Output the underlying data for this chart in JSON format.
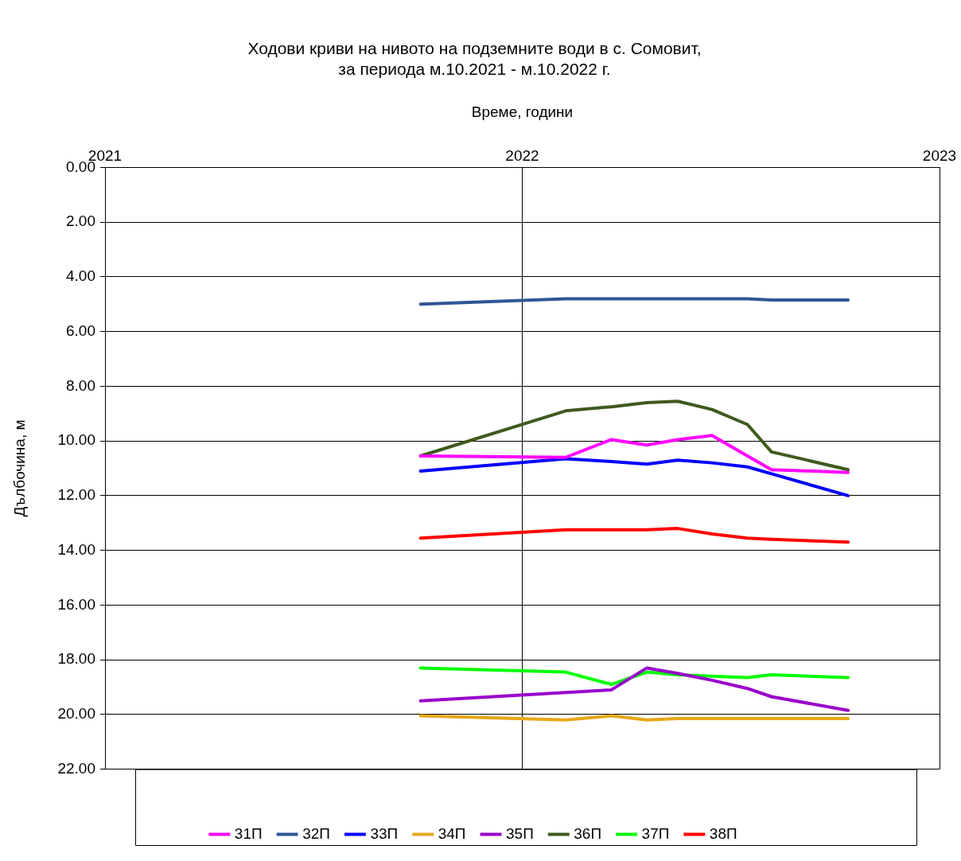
{
  "chart_data": {
    "type": "line",
    "title": "Ходови криви на нивото на подземните води в с. Сомовит,\nза периода м.10.2021 - м.10.2022 г.",
    "xlabel": "Време, години",
    "ylabel": "Дълбочина, м",
    "x": [
      "2021-10-04",
      "2022-02-08",
      "2022-03-20",
      "2022-04-20",
      "2022-05-17",
      "2022-06-16",
      "2022-07-17",
      "2022-08-07",
      "2022-10-13"
    ],
    "series": [
      {
        "name": "31П",
        "color": "#ff00ff",
        "values": [
          10.55,
          10.6,
          9.95,
          10.15,
          9.95,
          9.8,
          10.55,
          11.05,
          11.15
        ]
      },
      {
        "name": "32П",
        "color": "#2f5597",
        "values": [
          5.0,
          4.8,
          4.8,
          4.8,
          4.8,
          4.8,
          4.8,
          4.85,
          4.85
        ]
      },
      {
        "name": "33П",
        "color": "#0000ff",
        "values": [
          11.1,
          10.65,
          10.75,
          10.85,
          10.7,
          10.8,
          10.95,
          11.2,
          12.0
        ]
      },
      {
        "name": "34П",
        "color": "#e6a817",
        "values": [
          20.05,
          20.2,
          20.05,
          20.2,
          20.15,
          20.15,
          20.15,
          20.15,
          20.15
        ]
      },
      {
        "name": "35П",
        "color": "#9900cc",
        "values": [
          19.5,
          19.2,
          19.1,
          18.3,
          18.5,
          18.75,
          19.05,
          19.35,
          19.85
        ]
      },
      {
        "name": "36П",
        "color": "#3e5a1e",
        "values": [
          10.55,
          8.9,
          8.75,
          8.6,
          8.55,
          8.85,
          9.4,
          10.4,
          11.05
        ]
      },
      {
        "name": "37П",
        "color": "#00ff00",
        "values": [
          18.3,
          18.45,
          18.9,
          18.45,
          18.55,
          18.6,
          18.65,
          18.55,
          18.65
        ]
      },
      {
        "name": "38П",
        "color": "#ff0000",
        "values": [
          13.55,
          13.25,
          13.25,
          13.25,
          13.2,
          13.4,
          13.55,
          13.6,
          13.7
        ]
      }
    ],
    "xlim": [
      "2021",
      "2023"
    ],
    "xticks": [
      {
        "value": "2021",
        "label": "2021"
      },
      {
        "value": "2022",
        "label": "2022"
      },
      {
        "value": "2023",
        "label": "2023"
      }
    ],
    "ylim": [
      22,
      0
    ],
    "yticks": [
      {
        "value": 0,
        "label": "0.00"
      },
      {
        "value": 2,
        "label": "2.00"
      },
      {
        "value": 4,
        "label": "4.00"
      },
      {
        "value": 6,
        "label": "6.00"
      },
      {
        "value": 8,
        "label": "8.00"
      },
      {
        "value": 10,
        "label": "10.00"
      },
      {
        "value": 12,
        "label": "12.00"
      },
      {
        "value": 14,
        "label": "14.00"
      },
      {
        "value": 16,
        "label": "16.00"
      },
      {
        "value": 18,
        "label": "18.00"
      },
      {
        "value": 20,
        "label": "20.00"
      },
      {
        "value": 22,
        "label": "22.00"
      }
    ],
    "grid": true,
    "legend": "bottom",
    "marker": "none",
    "line_style": "solid"
  }
}
